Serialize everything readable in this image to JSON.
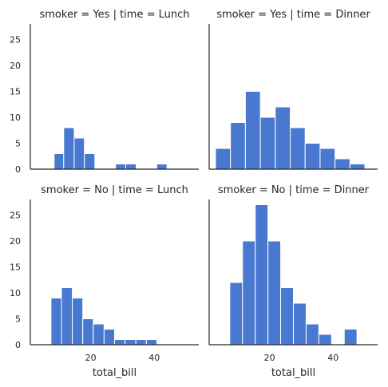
{
  "chart_data": {
    "type": "facet-histogram",
    "xlabel": "total_bill",
    "xlim": [
      1,
      54
    ],
    "ylim": [
      0,
      28
    ],
    "yticks": [
      0,
      5,
      10,
      15,
      20,
      25
    ],
    "xticks": [
      20,
      40
    ],
    "bar_color": "#4878d0",
    "panels": [
      {
        "title": "smoker = Yes | time = Lunch",
        "bins": [
          {
            "x0": 8.5,
            "x1": 11.5,
            "count": 3
          },
          {
            "x0": 11.5,
            "x1": 14.8,
            "count": 8
          },
          {
            "x0": 14.8,
            "x1": 18.0,
            "count": 6
          },
          {
            "x0": 18.0,
            "x1": 21.3,
            "count": 3
          },
          {
            "x0": 21.3,
            "x1": 24.5,
            "count": 0
          },
          {
            "x0": 24.5,
            "x1": 27.8,
            "count": 0
          },
          {
            "x0": 27.8,
            "x1": 31.0,
            "count": 1
          },
          {
            "x0": 31.0,
            "x1": 34.3,
            "count": 1
          },
          {
            "x0": 34.3,
            "x1": 37.5,
            "count": 0
          },
          {
            "x0": 37.5,
            "x1": 40.8,
            "count": 0
          },
          {
            "x0": 40.8,
            "x1": 44.0,
            "count": 1
          }
        ]
      },
      {
        "title": "smoker = Yes | time = Dinner",
        "bins": [
          {
            "x0": 3.0,
            "x1": 7.7,
            "count": 4
          },
          {
            "x0": 7.7,
            "x1": 12.4,
            "count": 9
          },
          {
            "x0": 12.4,
            "x1": 17.1,
            "count": 15
          },
          {
            "x0": 17.1,
            "x1": 21.8,
            "count": 10
          },
          {
            "x0": 21.8,
            "x1": 26.5,
            "count": 12
          },
          {
            "x0": 26.5,
            "x1": 31.2,
            "count": 8
          },
          {
            "x0": 31.2,
            "x1": 35.9,
            "count": 5
          },
          {
            "x0": 35.9,
            "x1": 40.6,
            "count": 4
          },
          {
            "x0": 40.6,
            "x1": 45.3,
            "count": 2
          },
          {
            "x0": 45.3,
            "x1": 50.0,
            "count": 1
          }
        ]
      },
      {
        "title": "smoker = No | time = Lunch",
        "bins": [
          {
            "x0": 7.5,
            "x1": 10.8,
            "count": 9
          },
          {
            "x0": 10.8,
            "x1": 14.2,
            "count": 11
          },
          {
            "x0": 14.2,
            "x1": 17.5,
            "count": 9
          },
          {
            "x0": 17.5,
            "x1": 20.8,
            "count": 5
          },
          {
            "x0": 20.8,
            "x1": 24.2,
            "count": 4
          },
          {
            "x0": 24.2,
            "x1": 27.5,
            "count": 3
          },
          {
            "x0": 27.5,
            "x1": 30.8,
            "count": 1
          },
          {
            "x0": 30.8,
            "x1": 34.2,
            "count": 1
          },
          {
            "x0": 34.2,
            "x1": 37.5,
            "count": 1
          },
          {
            "x0": 37.5,
            "x1": 40.8,
            "count": 1
          }
        ]
      },
      {
        "title": "smoker = No | time = Dinner",
        "bins": [
          {
            "x0": 7.5,
            "x1": 11.5,
            "count": 12
          },
          {
            "x0": 11.5,
            "x1": 15.5,
            "count": 20
          },
          {
            "x0": 15.5,
            "x1": 19.5,
            "count": 27
          },
          {
            "x0": 19.5,
            "x1": 23.5,
            "count": 20
          },
          {
            "x0": 23.5,
            "x1": 27.5,
            "count": 11
          },
          {
            "x0": 27.5,
            "x1": 31.5,
            "count": 8
          },
          {
            "x0": 31.5,
            "x1": 35.5,
            "count": 4
          },
          {
            "x0": 35.5,
            "x1": 39.5,
            "count": 2
          },
          {
            "x0": 39.5,
            "x1": 43.5,
            "count": 0
          },
          {
            "x0": 43.5,
            "x1": 47.5,
            "count": 3
          }
        ]
      }
    ]
  }
}
